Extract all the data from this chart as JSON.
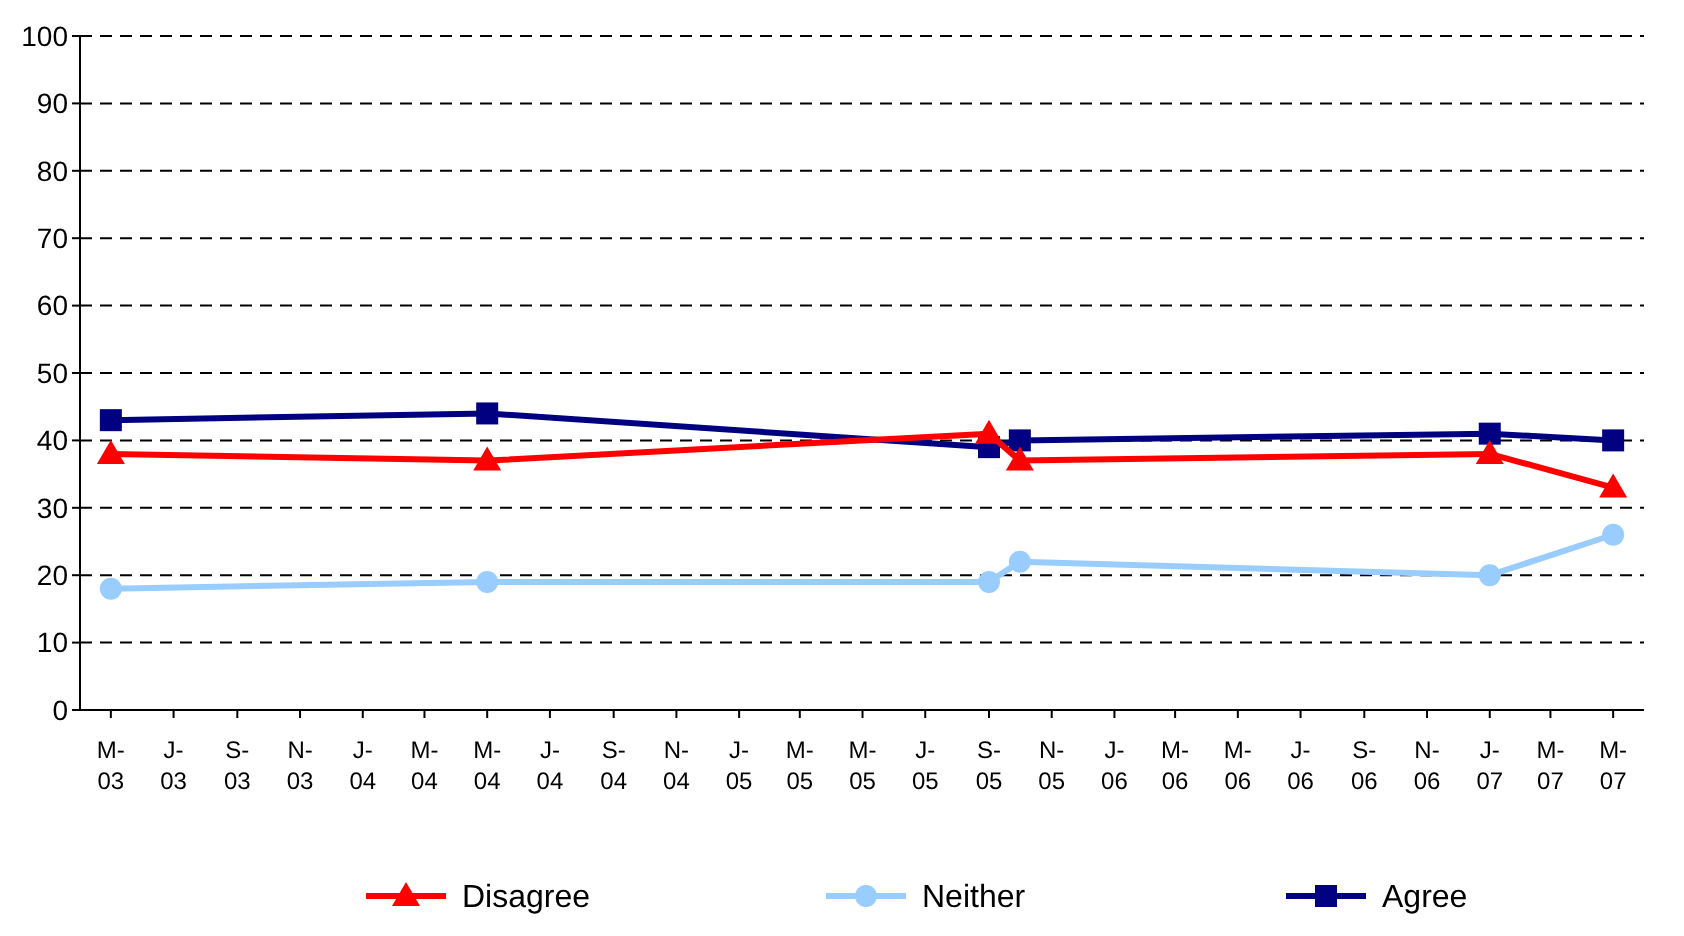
{
  "chart_data": {
    "type": "line",
    "x": [
      "2003-05",
      "2004-05",
      "2005-09",
      "2005-10",
      "2007-01",
      "2007-05"
    ],
    "series": [
      {
        "name": "Disagree",
        "color": "#ff0000",
        "marker": "triangle",
        "values": [
          38,
          37,
          41,
          37,
          38,
          33
        ]
      },
      {
        "name": "Neither",
        "color": "#99ccff",
        "marker": "circle",
        "values": [
          18,
          19,
          19,
          22,
          20,
          26
        ]
      },
      {
        "name": "Agree",
        "color": "#000080",
        "marker": "square",
        "values": [
          43,
          44,
          39,
          40,
          41,
          40
        ]
      }
    ],
    "xlim": [
      "2003-04-01",
      "2007-05-31"
    ],
    "xticks": [
      {
        "value": "2003-05",
        "label": "M-03"
      },
      {
        "value": "2003-07",
        "label": "J-03"
      },
      {
        "value": "2003-09",
        "label": "S-03"
      },
      {
        "value": "2003-11",
        "label": "N-03"
      },
      {
        "value": "2004-01",
        "label": "J-04"
      },
      {
        "value": "2004-03",
        "label": "M-04"
      },
      {
        "value": "2004-05",
        "label": "M-04"
      },
      {
        "value": "2004-07",
        "label": "J-04"
      },
      {
        "value": "2004-09",
        "label": "S-04"
      },
      {
        "value": "2004-11",
        "label": "N-04"
      },
      {
        "value": "2005-01",
        "label": "J-05"
      },
      {
        "value": "2005-03",
        "label": "M-05"
      },
      {
        "value": "2005-05",
        "label": "M-05"
      },
      {
        "value": "2005-07",
        "label": "J-05"
      },
      {
        "value": "2005-09",
        "label": "S-05"
      },
      {
        "value": "2005-11",
        "label": "N-05"
      },
      {
        "value": "2006-01",
        "label": "J-06"
      },
      {
        "value": "2006-03",
        "label": "M-06"
      },
      {
        "value": "2006-05",
        "label": "M-06"
      },
      {
        "value": "2006-07",
        "label": "J-06"
      },
      {
        "value": "2006-09",
        "label": "S-06"
      },
      {
        "value": "2006-11",
        "label": "N-06"
      },
      {
        "value": "2007-01",
        "label": "J-07"
      },
      {
        "value": "2007-03",
        "label": "M-07"
      },
      {
        "value": "2007-05",
        "label": "M-07"
      }
    ],
    "ylim": [
      0,
      100
    ],
    "yticks": [
      0,
      10,
      20,
      30,
      40,
      50,
      60,
      70,
      80,
      90,
      100
    ],
    "grid": "y",
    "legend": "bottom",
    "line_style": "solid"
  }
}
